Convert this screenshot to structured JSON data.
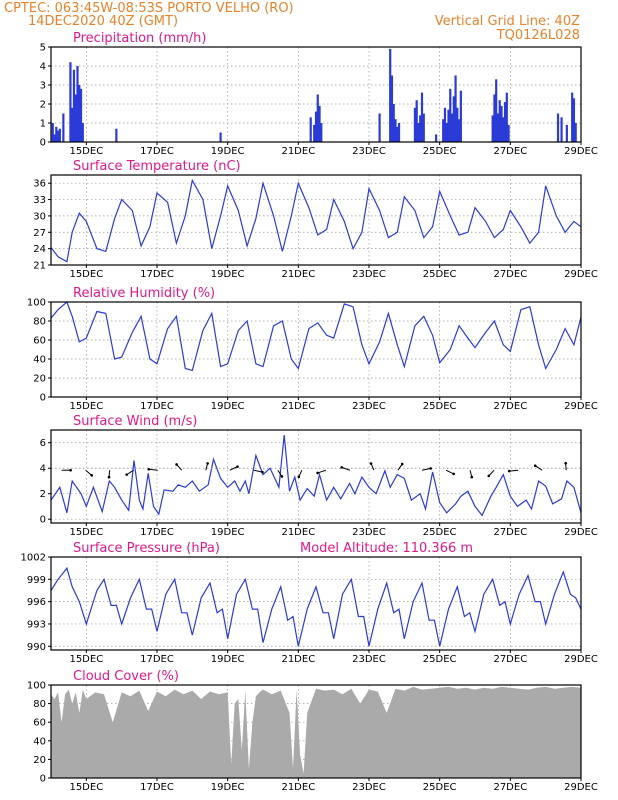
{
  "header": {
    "line1_left": "CPTEC:   063:45W-08:53S   PORTO VELHO (RO)",
    "line2_left": "14DEC2020 40Z (GMT)",
    "line2_right": "Vertical Grid Line: 40Z",
    "line3_right": "TQ0126L028"
  },
  "colors": {
    "header": "#e8822a",
    "panel_title": "#e0198a",
    "series": "#2b3bd6",
    "cloud": "#aaaaaa"
  },
  "x_ticks": [
    "15DEC",
    "17DEC",
    "19DEC",
    "21DEC",
    "23DEC",
    "25DEC",
    "27DEC",
    "29DEC"
  ],
  "chart_data": [
    {
      "type": "bar",
      "title": "Precipitation (mm/h)",
      "ylim": [
        0,
        5
      ],
      "yticks": [
        0,
        1,
        2,
        3,
        4,
        5
      ],
      "x_range_days": [
        14.0,
        29.0
      ],
      "x": [
        14.05,
        14.1,
        14.15,
        14.2,
        14.25,
        14.35,
        14.55,
        14.6,
        14.65,
        14.7,
        14.75,
        14.8,
        14.85,
        14.9,
        15.85,
        18.8,
        21.35,
        21.45,
        21.5,
        21.55,
        21.6,
        21.65,
        23.3,
        23.6,
        23.65,
        23.7,
        23.75,
        23.8,
        23.85,
        24.3,
        24.35,
        24.4,
        24.45,
        24.5,
        24.55,
        24.9,
        25.1,
        25.15,
        25.2,
        25.25,
        25.3,
        25.35,
        25.4,
        25.45,
        25.5,
        25.55,
        25.6,
        26.5,
        26.55,
        26.6,
        26.65,
        26.7,
        26.75,
        26.8,
        26.85,
        26.9,
        26.95,
        28.35,
        28.45,
        28.6,
        28.75,
        28.8,
        28.85
      ],
      "values": [
        1.0,
        0.4,
        0.8,
        0.6,
        0.7,
        1.5,
        4.2,
        1.8,
        3.8,
        2.5,
        4.0,
        3.0,
        2.8,
        1.0,
        0.7,
        0.5,
        1.3,
        0.9,
        1.6,
        2.5,
        1.9,
        1.0,
        1.5,
        4.9,
        3.5,
        2.0,
        1.2,
        0.8,
        1.0,
        1.8,
        2.2,
        1.0,
        1.4,
        2.6,
        1.5,
        0.4,
        1.2,
        1.8,
        1.0,
        1.7,
        2.8,
        1.5,
        2.4,
        3.5,
        1.8,
        1.2,
        2.7,
        1.4,
        2.5,
        3.3,
        1.5,
        2.2,
        1.9,
        1.3,
        2.1,
        2.6,
        0.9,
        1.5,
        1.3,
        0.9,
        2.6,
        2.3,
        1.0
      ]
    },
    {
      "type": "line",
      "title": "Surface Temperature (nC)",
      "ylim": [
        21,
        37.5
      ],
      "yticks": [
        21,
        24,
        27,
        30,
        33,
        36
      ],
      "x": [
        14.0,
        14.2,
        14.45,
        14.6,
        14.8,
        15.0,
        15.3,
        15.55,
        15.8,
        16.0,
        16.3,
        16.55,
        16.8,
        17.0,
        17.3,
        17.55,
        17.8,
        18.0,
        18.3,
        18.55,
        18.8,
        19.0,
        19.3,
        19.55,
        19.8,
        20.0,
        20.3,
        20.55,
        20.8,
        21.0,
        21.3,
        21.55,
        21.8,
        22.0,
        22.3,
        22.55,
        22.8,
        23.0,
        23.3,
        23.55,
        23.8,
        24.0,
        24.3,
        24.55,
        24.8,
        25.0,
        25.3,
        25.55,
        25.8,
        26.0,
        26.3,
        26.55,
        26.8,
        27.0,
        27.3,
        27.55,
        27.8,
        28.0,
        28.3,
        28.55,
        28.8,
        29.0
      ],
      "values": [
        24.2,
        22.5,
        21.6,
        27.0,
        30.5,
        29.0,
        24.0,
        23.5,
        29.5,
        33.0,
        31.0,
        24.5,
        28.0,
        34.2,
        32.5,
        25.0,
        30.0,
        36.5,
        33.0,
        24.0,
        30.0,
        35.5,
        31.0,
        24.5,
        29.5,
        36.0,
        30.0,
        23.5,
        30.0,
        36.0,
        31.5,
        26.5,
        27.5,
        33.0,
        29.0,
        24.0,
        27.0,
        35.0,
        31.0,
        26.0,
        27.0,
        33.5,
        31.0,
        26.0,
        28.0,
        34.5,
        30.0,
        26.5,
        27.0,
        31.5,
        29.0,
        26.0,
        27.5,
        31.0,
        28.0,
        25.0,
        27.0,
        35.5,
        30.0,
        27.0,
        29.0,
        28.0
      ]
    },
    {
      "type": "line",
      "title": "Relative Humidity (%)",
      "ylim": [
        0,
        100
      ],
      "yticks": [
        0,
        20,
        40,
        60,
        80,
        100
      ],
      "x": [
        14.0,
        14.2,
        14.45,
        14.6,
        14.8,
        15.0,
        15.3,
        15.55,
        15.8,
        16.0,
        16.3,
        16.55,
        16.8,
        17.0,
        17.3,
        17.55,
        17.8,
        18.0,
        18.3,
        18.55,
        18.8,
        19.0,
        19.3,
        19.55,
        19.8,
        20.0,
        20.3,
        20.55,
        20.8,
        21.0,
        21.3,
        21.55,
        21.8,
        22.0,
        22.3,
        22.55,
        22.8,
        23.0,
        23.3,
        23.55,
        23.8,
        24.0,
        24.3,
        24.55,
        24.8,
        25.0,
        25.3,
        25.55,
        25.8,
        26.0,
        26.3,
        26.55,
        26.8,
        27.0,
        27.3,
        27.55,
        27.8,
        28.0,
        28.3,
        28.55,
        28.8,
        29.0
      ],
      "values": [
        83,
        92,
        100,
        85,
        58,
        62,
        90,
        88,
        40,
        42,
        68,
        85,
        40,
        35,
        72,
        85,
        30,
        28,
        70,
        88,
        32,
        35,
        70,
        80,
        35,
        32,
        75,
        80,
        40,
        30,
        72,
        78,
        65,
        62,
        98,
        95,
        55,
        35,
        58,
        88,
        55,
        32,
        75,
        85,
        65,
        36,
        50,
        75,
        62,
        52,
        68,
        80,
        55,
        48,
        92,
        95,
        55,
        30,
        50,
        72,
        55,
        84
      ]
    },
    {
      "type": "line",
      "title": "Surface Wind (m/s)",
      "ylim": [
        -0.3,
        7
      ],
      "yticks": [
        0,
        2,
        4,
        6
      ],
      "x": [
        14.0,
        14.25,
        14.45,
        14.6,
        14.85,
        15.0,
        15.2,
        15.45,
        15.65,
        15.8,
        16.0,
        16.2,
        16.35,
        16.5,
        16.6,
        16.75,
        16.9,
        17.05,
        17.2,
        17.45,
        17.6,
        17.8,
        18.0,
        18.2,
        18.45,
        18.6,
        18.8,
        19.0,
        19.2,
        19.35,
        19.5,
        19.6,
        19.8,
        20.0,
        20.2,
        20.45,
        20.6,
        20.75,
        20.9,
        21.05,
        21.25,
        21.45,
        21.6,
        21.8,
        22.0,
        22.2,
        22.45,
        22.6,
        22.8,
        23.0,
        23.2,
        23.45,
        23.6,
        23.8,
        24.0,
        24.2,
        24.45,
        24.6,
        24.8,
        25.0,
        25.2,
        25.45,
        25.6,
        25.8,
        26.0,
        26.2,
        26.45,
        26.6,
        26.8,
        27.0,
        27.2,
        27.45,
        27.6,
        27.8,
        28.0,
        28.2,
        28.45,
        28.6,
        28.8,
        29.0
      ],
      "values": [
        1.5,
        2.5,
        0.5,
        3.0,
        2.0,
        1.0,
        2.5,
        0.6,
        3.0,
        2.5,
        1.5,
        0.7,
        4.6,
        1.5,
        0.8,
        3.6,
        1.0,
        0.4,
        2.3,
        2.2,
        2.7,
        2.5,
        3.0,
        2.2,
        2.7,
        4.7,
        3.2,
        2.5,
        3.0,
        2.2,
        3.0,
        2.0,
        5.0,
        3.5,
        4.0,
        2.5,
        6.6,
        2.2,
        3.3,
        1.5,
        2.4,
        1.8,
        3.5,
        1.5,
        2.5,
        1.6,
        2.8,
        2.0,
        3.3,
        2.5,
        2.0,
        3.8,
        2.5,
        3.5,
        3.2,
        1.5,
        2.0,
        0.8,
        3.7,
        1.3,
        0.5,
        1.2,
        1.8,
        2.2,
        1.0,
        0.3,
        1.8,
        2.5,
        3.5,
        1.8,
        1.0,
        1.5,
        0.8,
        3.0,
        2.6,
        1.2,
        1.6,
        3.0,
        2.5,
        0.5
      ]
    },
    {
      "type": "line",
      "title": "Surface Pressure (hPa)",
      "annotation": "Model Altitude: 110.366 m",
      "ylim": [
        989.5,
        1002
      ],
      "yticks": [
        990,
        993,
        996,
        999,
        1002
      ],
      "x": [
        14.0,
        14.2,
        14.45,
        14.6,
        14.8,
        15.0,
        15.3,
        15.5,
        15.7,
        15.85,
        16.0,
        16.25,
        16.5,
        16.7,
        16.85,
        17.0,
        17.25,
        17.5,
        17.7,
        17.85,
        18.0,
        18.25,
        18.5,
        18.7,
        18.85,
        19.0,
        19.25,
        19.5,
        19.7,
        19.85,
        20.0,
        20.25,
        20.5,
        20.7,
        20.85,
        21.0,
        21.25,
        21.5,
        21.7,
        21.85,
        22.0,
        22.25,
        22.5,
        22.7,
        22.85,
        23.0,
        23.25,
        23.5,
        23.7,
        23.85,
        24.0,
        24.25,
        24.5,
        24.7,
        24.85,
        25.0,
        25.25,
        25.5,
        25.7,
        25.85,
        26.0,
        26.25,
        26.5,
        26.7,
        26.85,
        27.0,
        27.25,
        27.5,
        27.7,
        27.85,
        28.0,
        28.25,
        28.5,
        28.7,
        28.85,
        29.0
      ],
      "values": [
        997.5,
        999.0,
        1000.5,
        998.0,
        996.0,
        993.0,
        997.5,
        999.0,
        995.5,
        995.5,
        993.0,
        996.5,
        999.0,
        995.0,
        995.0,
        992.0,
        997.0,
        999.0,
        994.5,
        994.5,
        991.5,
        996.5,
        998.5,
        994.5,
        995.0,
        991.0,
        997.0,
        999.0,
        995.0,
        995.0,
        990.5,
        995.0,
        998.0,
        993.5,
        994.0,
        990.0,
        995.0,
        998.0,
        994.5,
        994.5,
        991.0,
        997.0,
        999.0,
        994.0,
        994.0,
        990.0,
        995.0,
        998.5,
        994.5,
        995.0,
        991.0,
        996.0,
        998.5,
        993.5,
        993.5,
        990.0,
        995.0,
        998.0,
        994.0,
        994.5,
        992.0,
        997.0,
        999.0,
        995.5,
        996.0,
        993.0,
        997.0,
        999.5,
        996.0,
        996.0,
        993.0,
        997.0,
        1000.0,
        997.0,
        996.5,
        995.0
      ]
    },
    {
      "type": "area",
      "title": "Cloud Cover (%)",
      "ylim": [
        0,
        100
      ],
      "yticks": [
        0,
        20,
        40,
        60,
        80,
        100
      ],
      "x": [
        14.0,
        14.1,
        14.2,
        14.3,
        14.4,
        14.5,
        14.6,
        14.7,
        14.8,
        14.9,
        15.0,
        15.25,
        15.5,
        15.75,
        16.0,
        16.25,
        16.5,
        16.75,
        17.0,
        17.25,
        17.5,
        17.75,
        18.0,
        18.25,
        18.5,
        18.75,
        19.0,
        19.1,
        19.2,
        19.3,
        19.4,
        19.5,
        19.6,
        19.7,
        19.8,
        19.9,
        20.0,
        20.25,
        20.5,
        20.75,
        20.85,
        20.95,
        21.05,
        21.15,
        21.25,
        21.5,
        21.75,
        22.0,
        22.25,
        22.5,
        22.75,
        23.0,
        23.25,
        23.5,
        23.75,
        24.0,
        24.25,
        24.5,
        24.75,
        25.0,
        25.25,
        25.5,
        25.75,
        26.0,
        26.25,
        26.5,
        26.75,
        27.0,
        27.25,
        27.5,
        27.75,
        28.0,
        28.25,
        28.5,
        28.75,
        29.0
      ],
      "values": [
        90,
        85,
        92,
        60,
        90,
        95,
        80,
        92,
        70,
        95,
        85,
        92,
        90,
        60,
        92,
        88,
        94,
        72,
        93,
        88,
        95,
        90,
        94,
        85,
        93,
        90,
        92,
        15,
        80,
        85,
        30,
        94,
        10,
        60,
        88,
        92,
        95,
        90,
        94,
        70,
        10,
        95,
        25,
        5,
        70,
        96,
        94,
        95,
        90,
        96,
        80,
        95,
        93,
        70,
        96,
        94,
        98,
        95,
        96,
        97,
        98,
        96,
        97,
        95,
        97,
        96,
        98,
        97,
        96,
        95,
        97,
        98,
        96,
        97,
        98,
        97
      ]
    }
  ]
}
